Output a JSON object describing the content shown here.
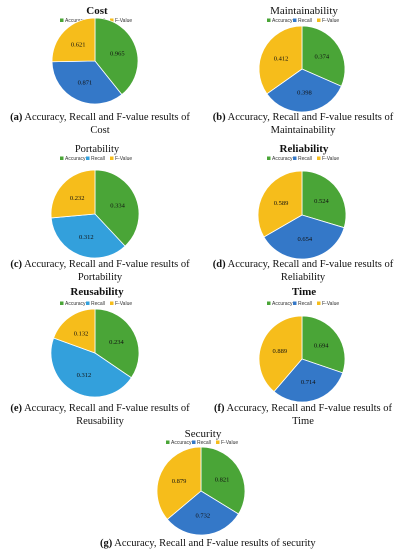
{
  "colors": {
    "accuracy": "#4aa537",
    "recall": "#3478c8",
    "fvalue": "#f6bd1b",
    "recall_alt": "#33a0dc"
  },
  "legend_labels": [
    "Accuracy",
    "Recall",
    "F-Value"
  ],
  "chart_data": [
    {
      "type": "pie",
      "title": "Cost",
      "title_bold": true,
      "legend_position": "top",
      "slices": [
        {
          "name": "Accuracy",
          "value": 0.965
        },
        {
          "name": "Recall",
          "value": 0.871
        },
        {
          "name": "F-Value",
          "value": 0.621
        }
      ],
      "caption_tag": "(a)",
      "caption_line1": " Accuracy, Recall and F-value results of",
      "caption_line2": "Cost"
    },
    {
      "type": "pie",
      "title": "Maintainability",
      "title_bold": false,
      "legend_position": "top",
      "slices": [
        {
          "name": "Accuracy",
          "value": 0.374
        },
        {
          "name": "Recall",
          "value": 0.398
        },
        {
          "name": "F-Value",
          "value": 0.412
        }
      ],
      "caption_tag": "(b)",
      "caption_line1": " Accuracy, Recall and F-value results of",
      "caption_line2": "Maintainability"
    },
    {
      "type": "pie",
      "title": "Portability",
      "title_bold": false,
      "legend_position": "top",
      "slices": [
        {
          "name": "Accuracy",
          "value": 0.334
        },
        {
          "name": "Recall",
          "value": 0.312
        },
        {
          "name": "F-Value",
          "value": 0.232
        }
      ],
      "caption_tag": "(c)",
      "caption_line1": " Accuracy, Recall and F-value results of",
      "caption_line2": "Portability"
    },
    {
      "type": "pie",
      "title": "Reliability",
      "title_bold": true,
      "legend_position": "top",
      "slices": [
        {
          "name": "Accuracy",
          "value": 0.524
        },
        {
          "name": "Recall",
          "value": 0.654
        },
        {
          "name": "F-Value",
          "value": 0.589
        }
      ],
      "caption_tag": "(d)",
      "caption_line1": " Accuracy, Recall and F-value results of",
      "caption_line2": "Reliability"
    },
    {
      "type": "pie",
      "title": "Reusability",
      "title_bold": true,
      "legend_position": "top",
      "slices": [
        {
          "name": "Accuracy",
          "value": 0.234
        },
        {
          "name": "Recall",
          "value": 0.312
        },
        {
          "name": "F-Value",
          "value": 0.132
        }
      ],
      "caption_tag": "(e)",
      "caption_line1": " Accuracy, Recall and F-value results of",
      "caption_line2": "Reusability"
    },
    {
      "type": "pie",
      "title": "Time",
      "title_bold": true,
      "legend_position": "top",
      "slices": [
        {
          "name": "Accuracy",
          "value": 0.694
        },
        {
          "name": "Recall",
          "value": 0.714
        },
        {
          "name": "F-Value",
          "value": 0.889
        }
      ],
      "caption_tag": "(f)",
      "caption_line1": " Accuracy, Recall and F-value results of",
      "caption_line2": "Time"
    },
    {
      "type": "pie",
      "title": "Security",
      "title_bold": false,
      "legend_position": "top",
      "slices": [
        {
          "name": "Accuracy",
          "value": 0.821
        },
        {
          "name": "Recall",
          "value": 0.732
        },
        {
          "name": "F-Value",
          "value": 0.879
        }
      ],
      "caption_tag": "(g)",
      "caption_line1": " Accuracy, Recall and F-value results of security",
      "caption_line2": ""
    }
  ]
}
